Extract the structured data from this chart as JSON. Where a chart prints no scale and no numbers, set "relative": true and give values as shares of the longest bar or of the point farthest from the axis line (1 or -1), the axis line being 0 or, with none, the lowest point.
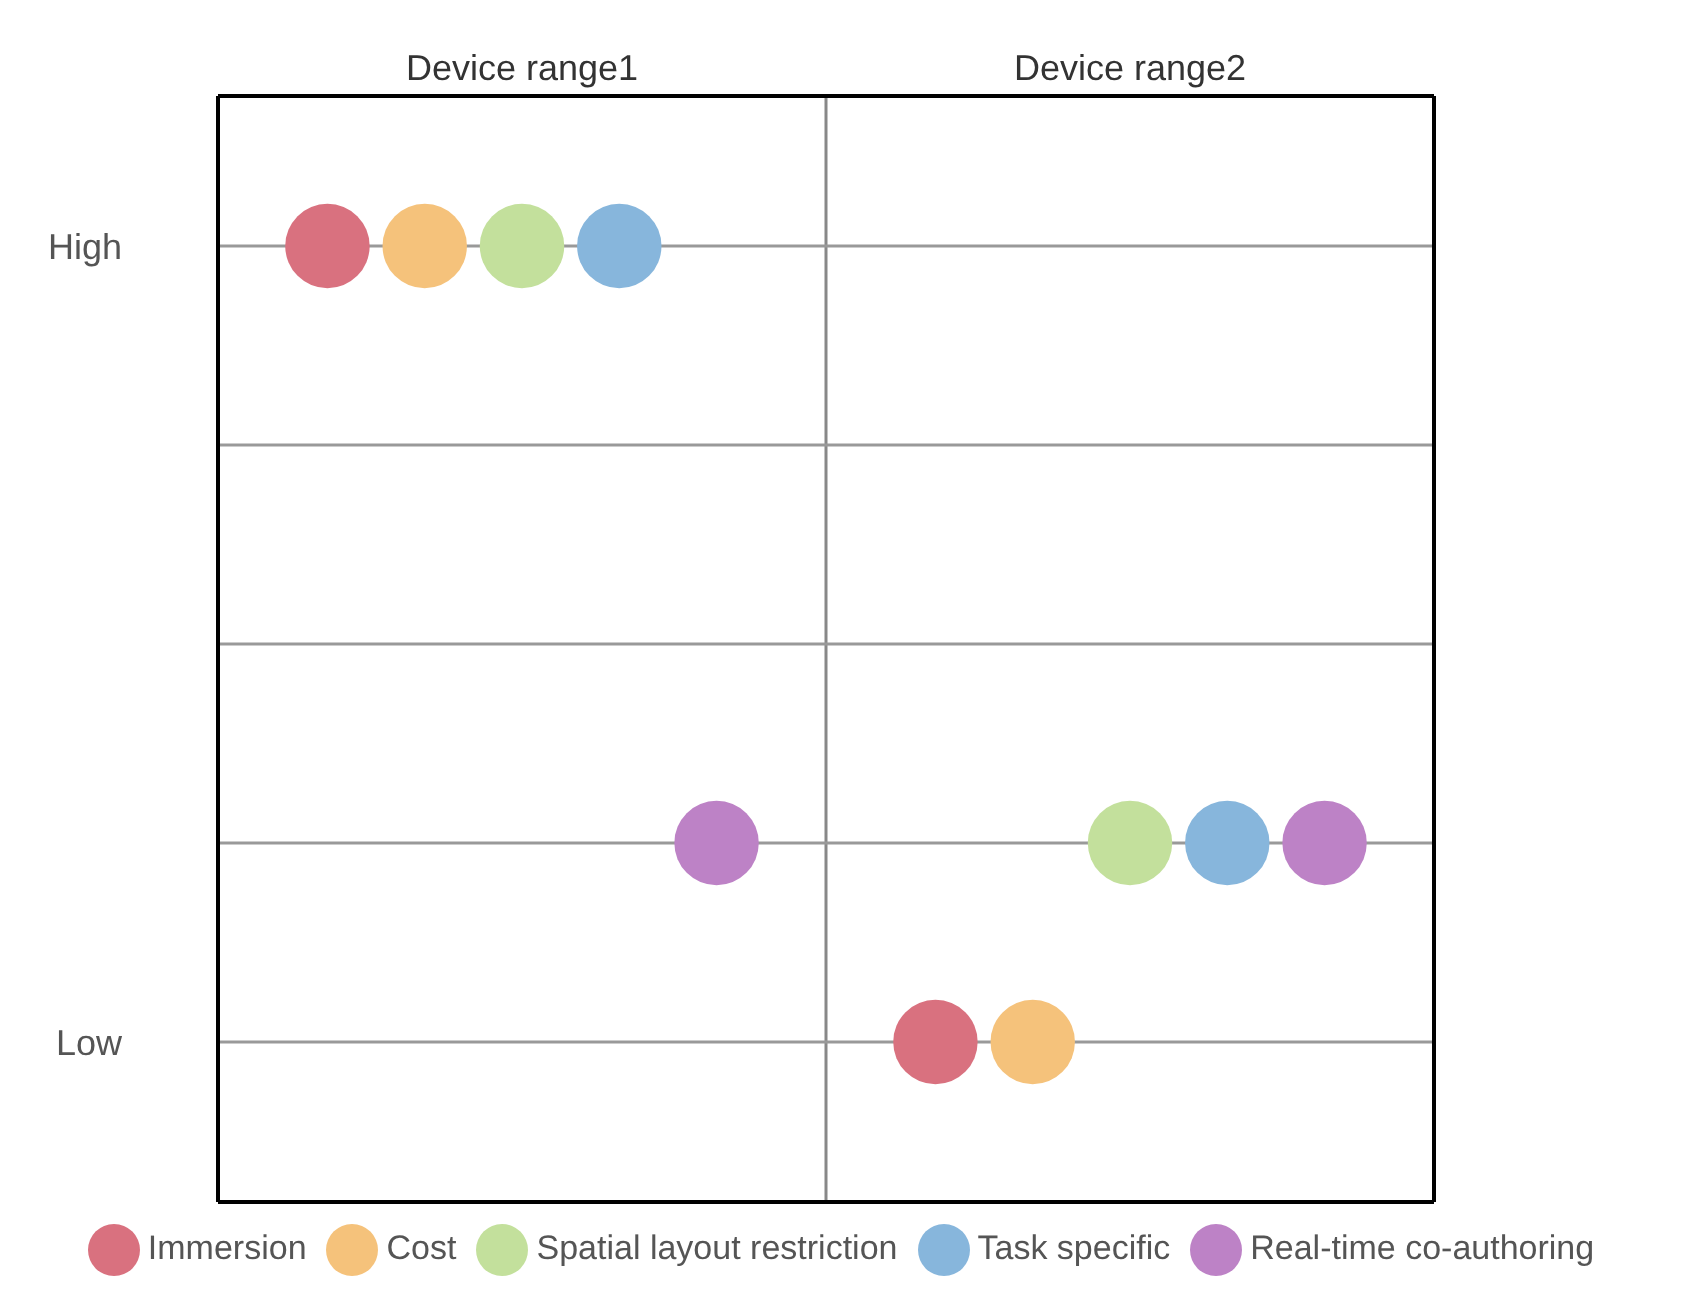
{
  "chart_data": {
    "type": "scatter",
    "relative": true,
    "marker": "circle",
    "grid": "x",
    "legend": "bottom",
    "categories": [
      "Device range1",
      "Device range2"
    ],
    "annotations": [
      "High",
      "Low"
    ],
    "ref_lines": [
      {
        "axis": "y",
        "value": 1,
        "color": "#999999"
      },
      {
        "axis": "y",
        "value": 0.75,
        "color": "#999999"
      },
      {
        "axis": "y",
        "value": 0.5,
        "color": "#999999"
      },
      {
        "axis": "y",
        "value": 0.25,
        "color": "#999999"
      },
      {
        "axis": "y",
        "value": 0,
        "color": "#999999"
      }
    ],
    "series": [
      {
        "name": "Immersion",
        "color": "#d9717f",
        "values": [
          1,
          0
        ]
      },
      {
        "name": "Cost",
        "color": "#f5c27b",
        "values": [
          1,
          0
        ]
      },
      {
        "name": "Spatial layout restriction",
        "color": "#c3e09c",
        "values": [
          1,
          0.25
        ]
      },
      {
        "name": "Task specific",
        "color": "#87b6dc",
        "values": [
          1,
          0.25
        ]
      },
      {
        "name": "Real-time co-authoring",
        "color": "#bd82c6",
        "values": [
          0.25,
          0.25
        ]
      }
    ]
  }
}
